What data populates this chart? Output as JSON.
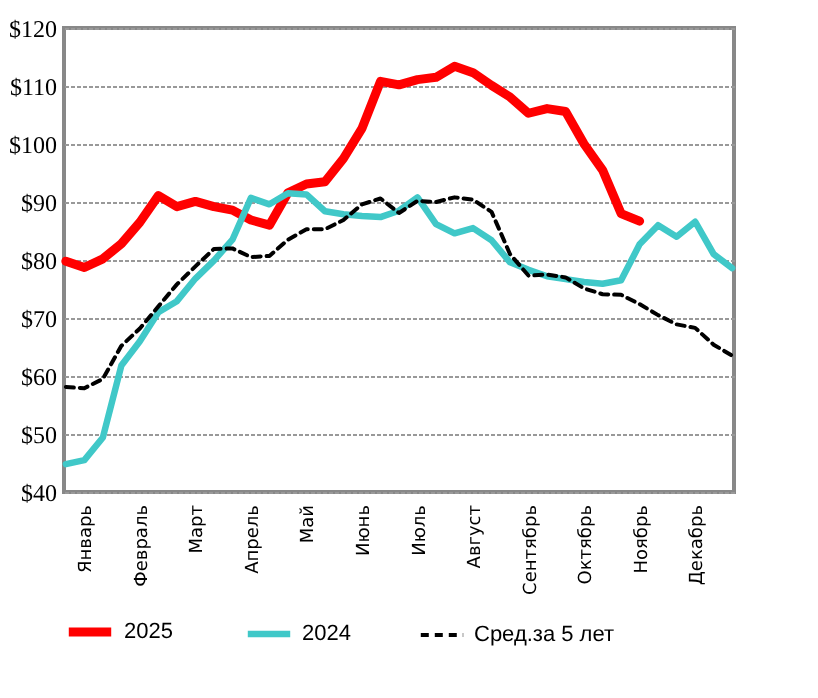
{
  "chart_data": {
    "type": "line",
    "ylim": [
      40,
      120
    ],
    "categories": [
      null,
      "Январь",
      null,
      null,
      "Февраль",
      null,
      null,
      "Март",
      null,
      null,
      "Апрель",
      null,
      null,
      "Май",
      null,
      null,
      "Июнь",
      null,
      null,
      "Июль",
      null,
      null,
      "Август",
      null,
      null,
      "Сентябрь",
      null,
      null,
      "Октябрь",
      null,
      null,
      "Ноябрь",
      null,
      null,
      "Декабрь",
      null,
      null
    ],
    "yticks": [
      {
        "value": 40,
        "label": "$40"
      },
      {
        "value": 50,
        "label": "$50"
      },
      {
        "value": 60,
        "label": "$60"
      },
      {
        "value": 70,
        "label": "$70"
      },
      {
        "value": 80,
        "label": "$80"
      },
      {
        "value": 90,
        "label": "$90"
      },
      {
        "value": 100,
        "label": "$100"
      },
      {
        "value": 110,
        "label": "$110"
      },
      {
        "value": 120,
        "label": "$120"
      }
    ],
    "grid": "y",
    "legend": "bottom",
    "series": [
      {
        "name": "2025",
        "color": "#ff0000",
        "line_style": "solid",
        "values": [
          79.8,
          78.7,
          80.2,
          82.8,
          86.5,
          91.1,
          89.2,
          90.1,
          89.2,
          88.6,
          86.9,
          86,
          91.6,
          93.1,
          93.5,
          97.5,
          102.7,
          110.8,
          110.2,
          111.1,
          111.5,
          113.4,
          112.3,
          110.1,
          108.1,
          105.3,
          106.1,
          105.6,
          100,
          95.5,
          88,
          86.7,
          null,
          null,
          null,
          null,
          null
        ]
      },
      {
        "name": "2024",
        "color": "#40c8c8",
        "line_style": "solid",
        "values": [
          44.8,
          45.5,
          49.4,
          61.8,
          66,
          71,
          72.9,
          76.8,
          79.9,
          83.5,
          90.7,
          89.6,
          91.5,
          91.3,
          88.4,
          87.9,
          87.6,
          87.4,
          88.5,
          90.8,
          86.2,
          84.6,
          85.5,
          83.4,
          79.6,
          78.3,
          77.2,
          76.7,
          76.2,
          75.9,
          76.5,
          82.7,
          86,
          84,
          86.6,
          81,
          78.6
        ]
      },
      {
        "name": "Сред.за 5 лет",
        "color": "#000000",
        "line_style": "dashed",
        "values": [
          58.1,
          57.9,
          59.5,
          65.2,
          68.2,
          72,
          75.8,
          78.9,
          81.9,
          82,
          80.5,
          80.7,
          83.5,
          85.3,
          85.3,
          86.9,
          89.6,
          90.6,
          88.1,
          90.2,
          90,
          90.8,
          90.4,
          88.3,
          81,
          77.3,
          77.5,
          77,
          75.1,
          74.1,
          74,
          72.4,
          70.5,
          68.9,
          68.3,
          65.4,
          63.5
        ]
      }
    ]
  }
}
